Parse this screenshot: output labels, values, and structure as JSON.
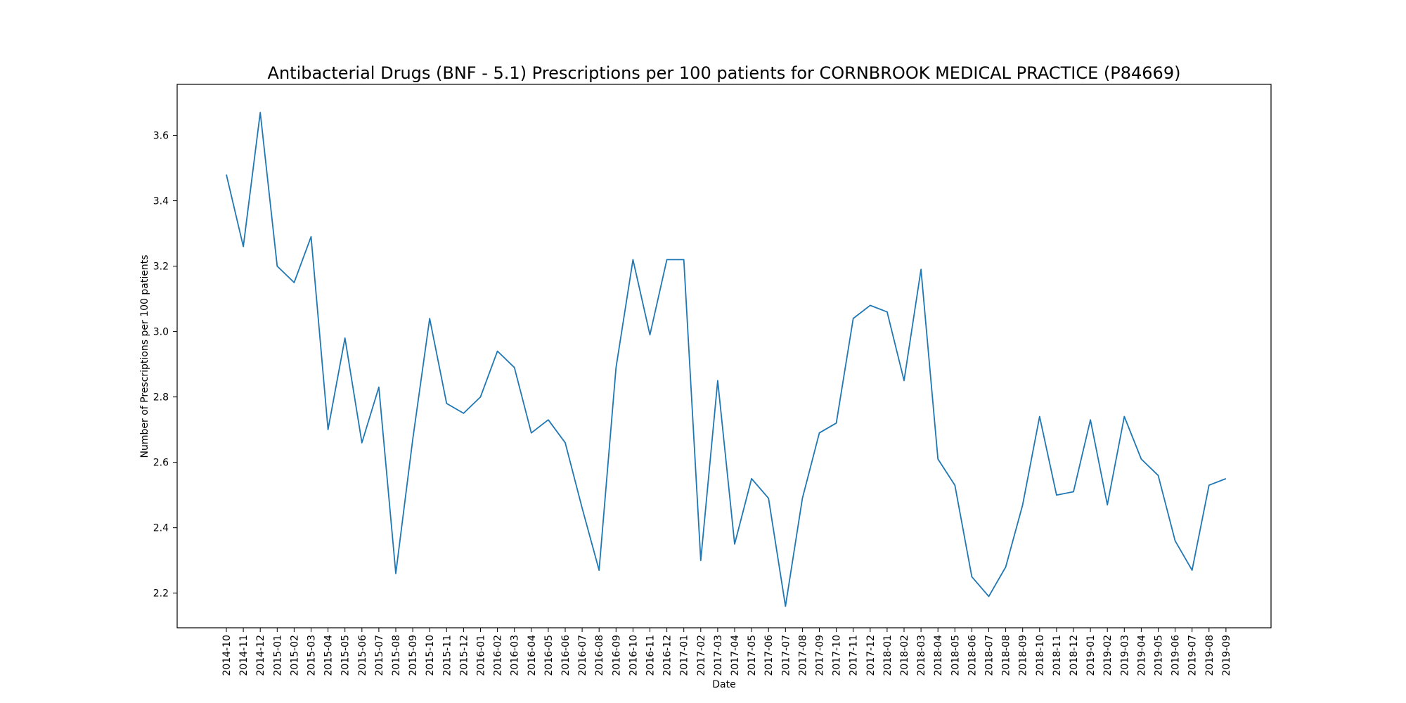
{
  "chart_data": {
    "type": "line",
    "title": "Antibacterial Drugs (BNF - 5.1) Prescriptions per 100 patients for CORNBROOK MEDICAL PRACTICE (P84669)",
    "xlabel": "Date",
    "ylabel": "Number of Prescriptions per 100 patients",
    "ylim": [
      2.094,
      3.756
    ],
    "yticks": [
      2.2,
      2.4,
      2.6,
      2.8,
      3.0,
      3.2,
      3.4,
      3.6
    ],
    "ytick_labels": [
      "2.2",
      "2.4",
      "2.6",
      "2.8",
      "3.0",
      "3.2",
      "3.4",
      "3.6"
    ],
    "grid": false,
    "legend": "none",
    "line_color": "#1f77b4",
    "categories": [
      "2014-10",
      "2014-11",
      "2014-12",
      "2015-01",
      "2015-02",
      "2015-03",
      "2015-04",
      "2015-05",
      "2015-06",
      "2015-07",
      "2015-08",
      "2015-09",
      "2015-10",
      "2015-11",
      "2015-12",
      "2016-01",
      "2016-02",
      "2016-03",
      "2016-04",
      "2016-05",
      "2016-06",
      "2016-07",
      "2016-08",
      "2016-09",
      "2016-10",
      "2016-11",
      "2016-12",
      "2017-01",
      "2017-02",
      "2017-03",
      "2017-04",
      "2017-05",
      "2017-06",
      "2017-07",
      "2017-08",
      "2017-09",
      "2017-10",
      "2017-11",
      "2017-12",
      "2018-01",
      "2018-02",
      "2018-03",
      "2018-04",
      "2018-05",
      "2018-06",
      "2018-07",
      "2018-08",
      "2018-09",
      "2018-10",
      "2018-11",
      "2018-12",
      "2019-01",
      "2019-02",
      "2019-03",
      "2019-04",
      "2019-05",
      "2019-06",
      "2019-07",
      "2019-08",
      "2019-09"
    ],
    "series": [
      {
        "values": [
          3.48,
          3.26,
          3.67,
          3.2,
          3.15,
          3.29,
          2.7,
          2.98,
          2.66,
          2.83,
          2.26,
          2.67,
          3.04,
          2.78,
          2.75,
          2.8,
          2.94,
          2.89,
          2.69,
          2.73,
          2.66,
          2.46,
          2.27,
          2.89,
          3.22,
          2.99,
          3.22,
          3.22,
          2.3,
          2.85,
          2.35,
          2.55,
          2.49,
          2.16,
          2.49,
          2.69,
          2.72,
          3.04,
          3.08,
          3.06,
          2.85,
          3.19,
          2.61,
          2.53,
          2.25,
          2.19,
          2.28,
          2.47,
          2.74,
          2.5,
          2.51,
          2.73,
          2.47,
          2.74,
          2.61,
          2.56,
          2.36,
          2.27,
          2.53,
          2.55
        ]
      }
    ]
  }
}
